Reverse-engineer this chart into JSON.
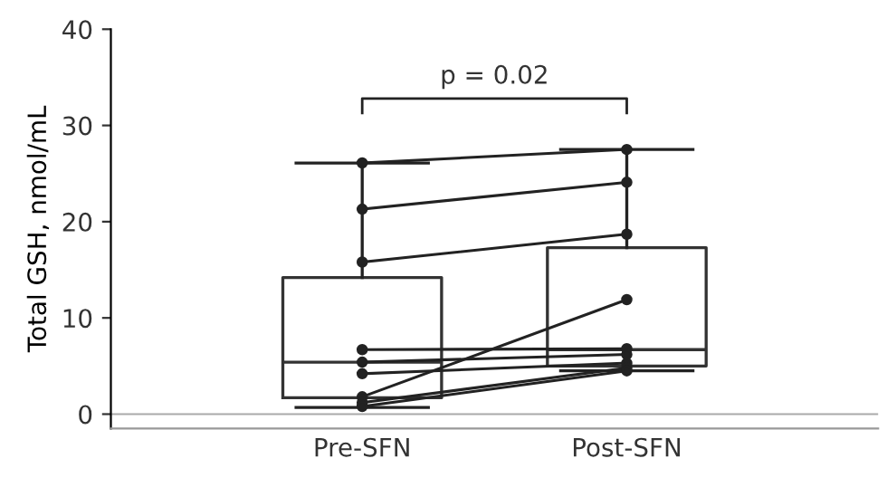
{
  "chart_data": {
    "type": "box",
    "ylabel": "Total GSH, nmol/mL",
    "categories": [
      "Pre-SFN",
      "Post-SFN"
    ],
    "boxes": [
      {
        "low": 0.7,
        "q1": 1.7,
        "median": 5.4,
        "q3": 14.2,
        "high": 26.1
      },
      {
        "low": 4.5,
        "q1": 5.0,
        "median": 6.7,
        "q3": 17.3,
        "high": 27.5
      }
    ],
    "series": [
      {
        "type": "line",
        "color": "#222222",
        "values": [
          26.1,
          27.5
        ]
      },
      {
        "type": "line",
        "color": "#222222",
        "values": [
          21.3,
          24.1
        ]
      },
      {
        "type": "line",
        "color": "#222222",
        "values": [
          15.8,
          18.7
        ]
      },
      {
        "type": "line",
        "color": "#222222",
        "values": [
          6.7,
          6.8
        ]
      },
      {
        "type": "line",
        "color": "#222222",
        "values": [
          5.4,
          6.2
        ]
      },
      {
        "type": "line",
        "color": "#222222",
        "values": [
          4.2,
          5.3
        ]
      },
      {
        "type": "line",
        "color": "#222222",
        "values": [
          1.8,
          11.9
        ]
      },
      {
        "type": "line",
        "color": "#222222",
        "values": [
          1.2,
          4.8
        ]
      },
      {
        "type": "line",
        "color": "#222222",
        "values": [
          0.8,
          4.5
        ]
      }
    ],
    "marker": "circle",
    "ylim": [
      -1.5,
      40
    ],
    "yticks": [
      0,
      10,
      20,
      30,
      40
    ],
    "ref_lines": [
      {
        "axis": "y",
        "value": 0,
        "color": "#aaaaaa"
      }
    ],
    "annotations": [
      "p = 0.02"
    ],
    "grid": false,
    "legend": false
  }
}
